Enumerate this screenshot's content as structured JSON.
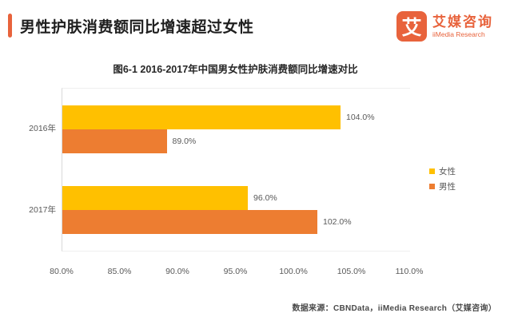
{
  "header": {
    "title": "男性护肤消费额同比增速超过女性",
    "accent_color": "#E8633C"
  },
  "logo": {
    "glyph": "艾",
    "name_cn": "艾媒咨询",
    "name_en": "iiMedia Research",
    "color": "#E8633C"
  },
  "chart_data": {
    "type": "bar",
    "orientation": "horizontal",
    "title": "图6-1 2016-2017年中国男女性护肤消费额同比增速对比",
    "categories": [
      "2016年",
      "2017年"
    ],
    "series": [
      {
        "key": "female",
        "name": "女性",
        "color": "#FFC000",
        "values": [
          104.0,
          96.0
        ],
        "labels": [
          "104.0%",
          "96.0%"
        ]
      },
      {
        "key": "male",
        "name": "男性",
        "color": "#ED7D31",
        "values": [
          89.0,
          102.0
        ],
        "labels": [
          "89.0%",
          "102.0%"
        ]
      }
    ],
    "xlim": [
      80,
      110
    ],
    "x_ticks": [
      {
        "value": 80,
        "label": "80.0%"
      },
      {
        "value": 85,
        "label": "85.0%"
      },
      {
        "value": 90,
        "label": "90.0%"
      },
      {
        "value": 95,
        "label": "95.0%"
      },
      {
        "value": 100,
        "label": "100.0%"
      },
      {
        "value": 105,
        "label": "105.0%"
      },
      {
        "value": 110,
        "label": "110.0%"
      }
    ],
    "legend_position": "right",
    "grid": false,
    "label_color": "#595959"
  },
  "footer": {
    "source": "数据来源：CBNData，iiMedia Research（艾媒咨询）"
  }
}
